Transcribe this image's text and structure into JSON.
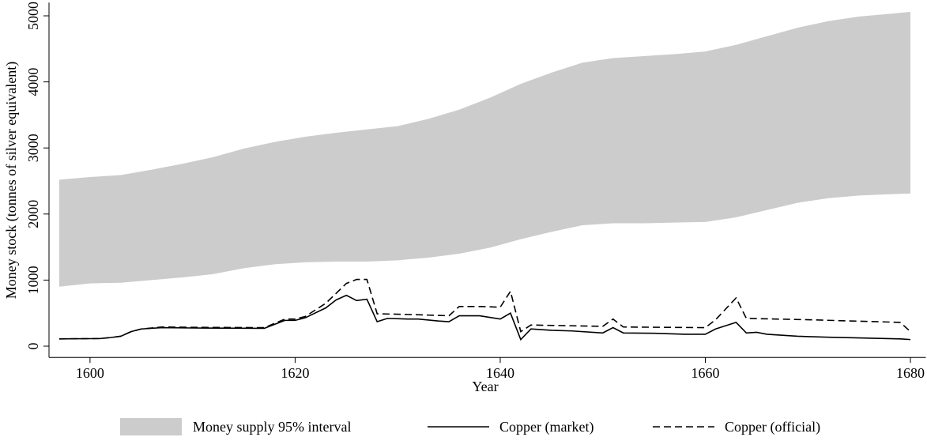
{
  "chart_data": {
    "type": "band-line",
    "x_label": "Year",
    "y_label": "Money stock (tonnes of silver equivalent)",
    "xlim": [
      1596,
      1681.5
    ],
    "ylim": [
      -170,
      5200
    ],
    "xticks": [
      1600,
      1620,
      1640,
      1660,
      1680
    ],
    "yticks": [
      0,
      1000,
      2000,
      3000,
      4000,
      5000
    ],
    "band": {
      "name": "Money supply 95% interval",
      "color": "#cccccc",
      "x": [
        1597,
        1600,
        1603,
        1606,
        1609,
        1612,
        1615,
        1618,
        1621,
        1624,
        1627,
        1630,
        1633,
        1636,
        1639,
        1642,
        1645,
        1648,
        1651,
        1654,
        1657,
        1660,
        1663,
        1666,
        1669,
        1672,
        1675,
        1678,
        1680
      ],
      "upper": [
        2520,
        2560,
        2590,
        2670,
        2760,
        2860,
        2990,
        3090,
        3170,
        3230,
        3280,
        3330,
        3440,
        3580,
        3760,
        3970,
        4140,
        4290,
        4360,
        4390,
        4420,
        4460,
        4560,
        4690,
        4820,
        4920,
        4990,
        5030,
        5060
      ],
      "lower": [
        900,
        950,
        960,
        1000,
        1040,
        1090,
        1180,
        1240,
        1270,
        1280,
        1280,
        1300,
        1340,
        1400,
        1490,
        1620,
        1730,
        1830,
        1860,
        1860,
        1870,
        1880,
        1950,
        2060,
        2170,
        2240,
        2280,
        2300,
        2310
      ]
    },
    "series": [
      {
        "name": "Copper (market)",
        "color": "#000000",
        "dash": false,
        "x": [
          1597,
          1601,
          1602,
          1603,
          1604,
          1605,
          1607,
          1610,
          1617,
          1619,
          1620,
          1621,
          1623,
          1624,
          1625,
          1626,
          1627,
          1628,
          1629,
          1631,
          1632,
          1634,
          1635,
          1636,
          1638,
          1640,
          1641,
          1642,
          1643,
          1645,
          1647,
          1650,
          1651,
          1652,
          1655,
          1658,
          1660,
          1661,
          1663,
          1664,
          1665,
          1666,
          1669,
          1672,
          1675,
          1679,
          1680
        ],
        "values": [
          110,
          115,
          130,
          150,
          220,
          260,
          280,
          275,
          270,
          390,
          390,
          430,
          580,
          700,
          770,
          690,
          710,
          370,
          420,
          410,
          410,
          380,
          370,
          460,
          460,
          410,
          500,
          100,
          260,
          240,
          230,
          200,
          280,
          200,
          195,
          180,
          180,
          260,
          360,
          200,
          210,
          180,
          150,
          135,
          125,
          110,
          100
        ]
      },
      {
        "name": "Copper (official)",
        "color": "#000000",
        "dash": true,
        "x": [
          1597,
          1601,
          1602,
          1603,
          1604,
          1605,
          1607,
          1610,
          1617,
          1619,
          1620,
          1621,
          1623,
          1625,
          1626,
          1627,
          1628,
          1631,
          1635,
          1636,
          1638,
          1640,
          1641,
          1642,
          1643,
          1650,
          1651,
          1652,
          1660,
          1661,
          1663,
          1664,
          1670,
          1679,
          1680
        ],
        "values": [
          110,
          115,
          130,
          150,
          220,
          260,
          290,
          285,
          280,
          410,
          410,
          450,
          650,
          950,
          1010,
          1010,
          490,
          480,
          460,
          600,
          600,
          590,
          830,
          220,
          320,
          300,
          410,
          290,
          280,
          400,
          730,
          420,
          400,
          360,
          220
        ]
      }
    ]
  }
}
